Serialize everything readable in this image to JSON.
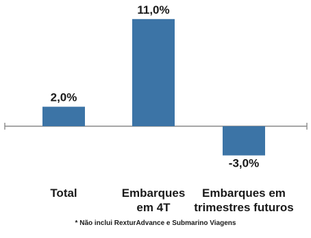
{
  "chart_data": {
    "type": "bar",
    "categories": [
      [
        "Total"
      ],
      [
        "Embarques",
        "em 4T"
      ],
      [
        "Embarques em",
        "trimestres futuros"
      ]
    ],
    "values": [
      2.0,
      11.0,
      -3.0
    ],
    "value_labels": [
      "2,0%",
      "11,0%",
      "-3,0%"
    ],
    "ylim": [
      -3.6,
      11.5
    ],
    "grid": false,
    "legend": "none",
    "bar_color": "#3c74a6"
  },
  "footnote": "* Não inclui RexturAdvance e Submarino Viagens"
}
